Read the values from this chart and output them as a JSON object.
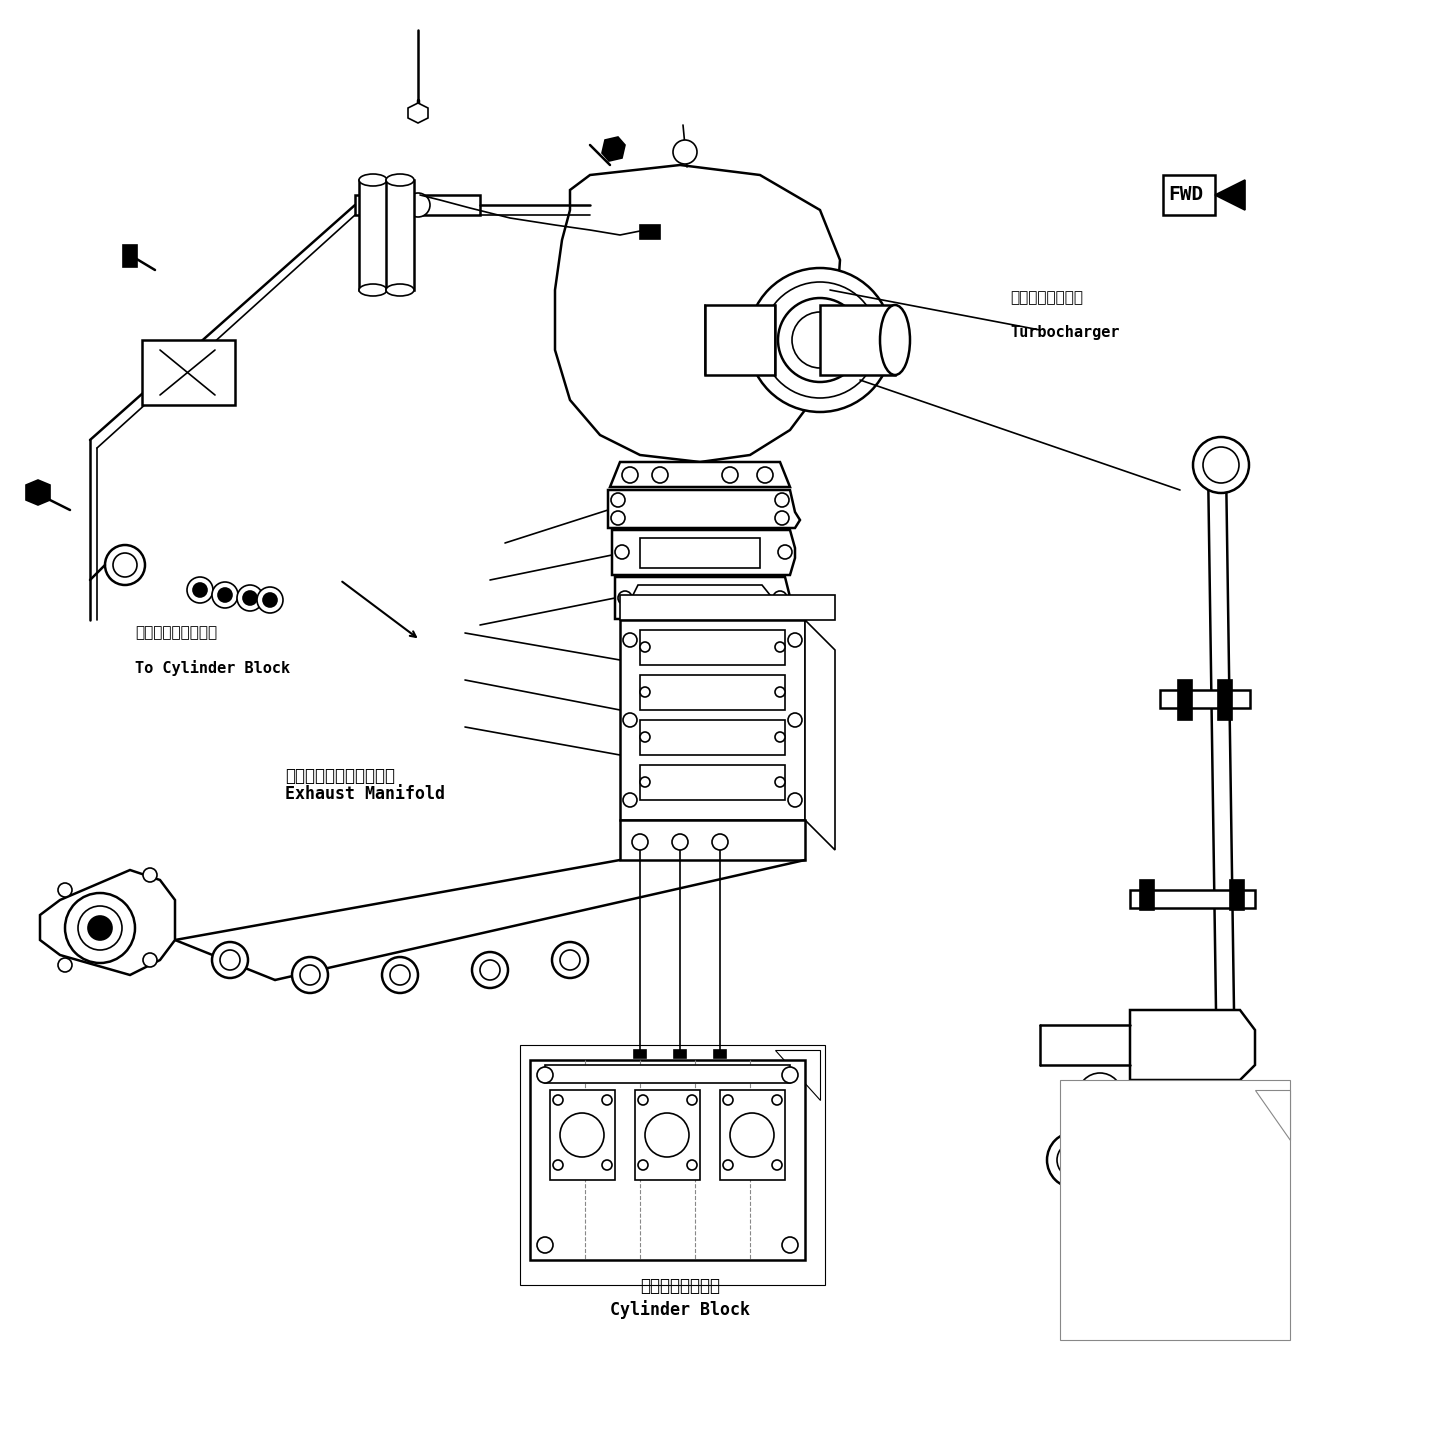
{
  "bg_color": "#ffffff",
  "line_color": "#000000",
  "labels": {
    "turbocharger_jp": "ターボチャージャ",
    "turbocharger_en": "Turbocharger",
    "exhaust_manifold_jp": "エキゾーストマニホルド",
    "exhaust_manifold_en": "Exhaust Manifold",
    "cylinder_block_jp": "シリンダブロック",
    "cylinder_block_en": "Cylinder Block",
    "to_cylinder_jp": "シリンダブロックへ",
    "to_cylinder_en": "To Cylinder Block",
    "fwd": "FWD"
  },
  "figsize": [
    14.48,
    14.4
  ],
  "dpi": 100
}
